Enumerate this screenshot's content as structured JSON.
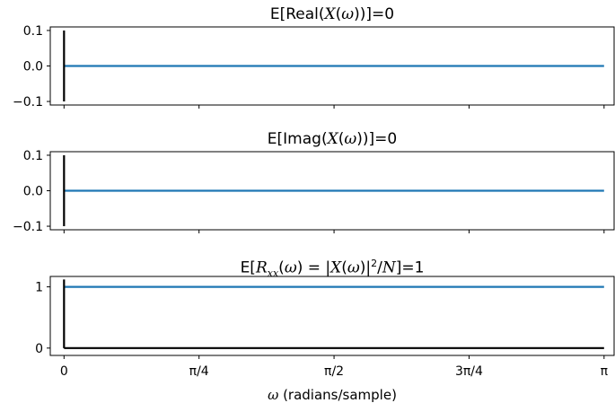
{
  "chart_data": [
    {
      "type": "line",
      "title": "E[Real(X(ω))]=0",
      "xlabel": "",
      "ylabel": "",
      "xlim": [
        -0.08,
        3.2
      ],
      "ylim": [
        -0.11,
        0.11
      ],
      "xticks": [
        0,
        0.785398,
        1.570796,
        2.356194,
        3.141593
      ],
      "xticklabels": [
        "",
        "",
        "",
        "",
        ""
      ],
      "yticks": [
        -0.1,
        0.0,
        0.1
      ],
      "yticklabels": [
        "−0.1",
        "0.0",
        "0.1"
      ],
      "grid": false,
      "series": [
        {
          "color": "#1f77b4",
          "x": [
            0,
            3.141593
          ],
          "y": [
            0,
            0
          ]
        }
      ],
      "stems": [
        {
          "color": "#000000",
          "x": 0,
          "y0": -0.1,
          "y1": 0.1
        }
      ]
    },
    {
      "type": "line",
      "title": "E[Imag(X(ω))]=0",
      "xlabel": "",
      "ylabel": "",
      "xlim": [
        -0.08,
        3.2
      ],
      "ylim": [
        -0.11,
        0.11
      ],
      "xticks": [
        0,
        0.785398,
        1.570796,
        2.356194,
        3.141593
      ],
      "xticklabels": [
        "",
        "",
        "",
        "",
        ""
      ],
      "yticks": [
        -0.1,
        0.0,
        0.1
      ],
      "yticklabels": [
        "−0.1",
        "0.0",
        "0.1"
      ],
      "grid": false,
      "series": [
        {
          "color": "#1f77b4",
          "x": [
            0,
            3.141593
          ],
          "y": [
            0,
            0
          ]
        }
      ],
      "stems": [
        {
          "color": "#000000",
          "x": 0,
          "y0": -0.1,
          "y1": 0.1
        }
      ]
    },
    {
      "type": "line",
      "title": "E[Rxx(ω) = |X(ω)|²/N]=1",
      "xlabel": "ω (radians/sample)",
      "ylabel": "",
      "xlim": [
        -0.08,
        3.2
      ],
      "ylim": [
        -0.12,
        1.17
      ],
      "xticks": [
        0,
        0.785398,
        1.570796,
        2.356194,
        3.141593
      ],
      "xticklabels": [
        "0",
        "π/4",
        "π/2",
        "3π/4",
        "π"
      ],
      "yticks": [
        0,
        1
      ],
      "yticklabels": [
        "0",
        "1"
      ],
      "grid": false,
      "series": [
        {
          "color": "#1f77b4",
          "x": [
            0,
            3.141593
          ],
          "y": [
            1,
            1
          ]
        },
        {
          "color": "#000000",
          "x": [
            0,
            3.141593
          ],
          "y": [
            0,
            0
          ]
        }
      ],
      "stems": [
        {
          "color": "#000000",
          "x": 0,
          "y0": 0,
          "y1": 1.12
        }
      ]
    }
  ]
}
